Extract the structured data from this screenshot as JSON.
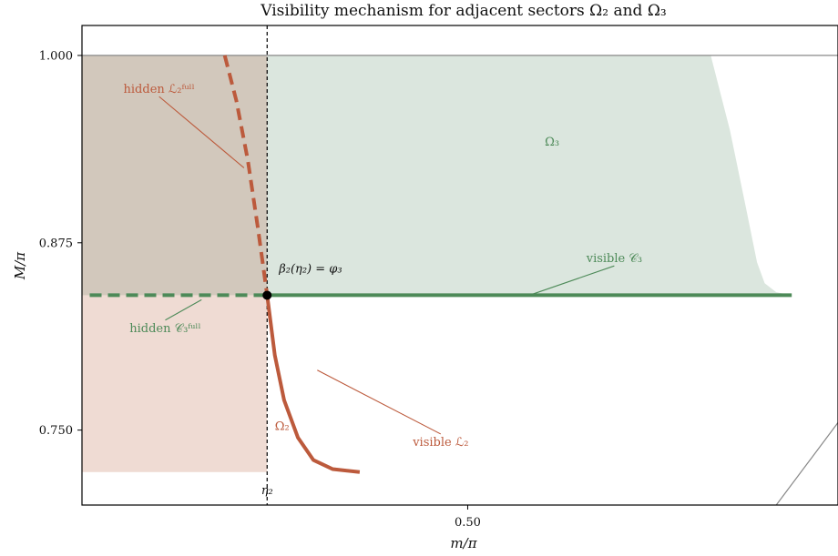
{
  "chart_data": {
    "type": "area",
    "title": "Visibility mechanism for adjacent sectors Ω₂ and Ω₃",
    "xlabel": "m/π",
    "ylabel": "M/π",
    "xlim": [
      0.0,
      0.98
    ],
    "ylim": [
      0.7,
      1.02
    ],
    "xticks": [
      {
        "value": 0.5,
        "label": "0.50"
      }
    ],
    "yticks": [
      {
        "value": 0.75,
        "label": "0.750"
      },
      {
        "value": 0.875,
        "label": "0.875"
      },
      {
        "value": 1.0,
        "label": "1.000"
      }
    ],
    "grid": false,
    "legend": "none",
    "colors": {
      "omega2_fill": "#efdbd3",
      "omega3_fill": "#dbe6de",
      "overlap_fill": "#d2c8bc",
      "L2": "#bc5a3c",
      "C3": "#4d8a58",
      "crossing_point": "#000000",
      "reference_line": "#888888"
    },
    "eta2": {
      "x": 0.24,
      "label": "η₂"
    },
    "phi3": 0.84,
    "omega3_region": {
      "label": "Ω₃",
      "label_x": 0.6,
      "label_y": 0.94,
      "boundary": [
        [
          0.0,
          1.0
        ],
        [
          0.815,
          1.0
        ],
        [
          0.84,
          0.95
        ],
        [
          0.86,
          0.9
        ],
        [
          0.875,
          0.862
        ],
        [
          0.885,
          0.848
        ],
        [
          0.9,
          0.842
        ],
        [
          0.92,
          0.84
        ],
        [
          0.92,
          0.84
        ],
        [
          0.0,
          0.84
        ]
      ]
    },
    "omega2_region": {
      "label": "Ω₂",
      "label_x": 0.25,
      "label_y": 0.75,
      "xmin": 0.0,
      "xmax": 0.24,
      "ymin": 0.722,
      "ymax": 0.84
    },
    "overlap_region": {
      "xmin": 0.0,
      "xmax": 0.24,
      "ymin": 0.84,
      "ymax": 1.0
    },
    "series": [
      {
        "name": "hidden ℒ₂ᶠᵘˡˡ",
        "style": "dashed",
        "points": [
          [
            0.185,
            1.0
          ],
          [
            0.2,
            0.97
          ],
          [
            0.215,
            0.93
          ],
          [
            0.228,
            0.885
          ],
          [
            0.24,
            0.84
          ]
        ]
      },
      {
        "name": "visible ℒ₂",
        "style": "solid",
        "points": [
          [
            0.24,
            0.84
          ],
          [
            0.25,
            0.8
          ],
          [
            0.262,
            0.77
          ],
          [
            0.28,
            0.745
          ],
          [
            0.3,
            0.73
          ],
          [
            0.325,
            0.724
          ],
          [
            0.36,
            0.722
          ]
        ]
      },
      {
        "name": "hidden 𝒞₃ᶠᵘˡˡ",
        "style": "dashed",
        "points": [
          [
            0.01,
            0.84
          ],
          [
            0.24,
            0.84
          ]
        ]
      },
      {
        "name": "visible 𝒞₃",
        "style": "solid",
        "points": [
          [
            0.24,
            0.84
          ],
          [
            0.92,
            0.84
          ]
        ]
      }
    ],
    "reference_lines": [
      {
        "points": [
          [
            0.0,
            1.0
          ],
          [
            0.98,
            1.0
          ]
        ]
      },
      {
        "points": [
          [
            0.9,
            0.7
          ],
          [
            0.98,
            0.755
          ]
        ]
      }
    ],
    "crossing_point": {
      "x": 0.24,
      "y": 0.84,
      "label": "β₂(η₂) = φ₃"
    },
    "annotations": [
      {
        "text": "hidden ℒ₂ᶠᵘˡˡ",
        "text_x": 0.1,
        "text_y": 0.975,
        "arrow_x": 0.21,
        "arrow_y": 0.925,
        "color": "#bc5a3c"
      },
      {
        "text": "visible 𝒞₃",
        "text_x": 0.69,
        "text_y": 0.862,
        "arrow_x": 0.58,
        "arrow_y": 0.84,
        "color": "#4d8a58"
      },
      {
        "text": "hidden 𝒞₃ᶠᵘˡˡ",
        "text_x": 0.108,
        "text_y": 0.8155,
        "arrow_x": 0.155,
        "arrow_y": 0.837,
        "color": "#4d8a58"
      },
      {
        "text": "visible ℒ₂",
        "text_x": 0.465,
        "text_y": 0.7395,
        "arrow_x": 0.305,
        "arrow_y": 0.79,
        "color": "#bc5a3c"
      }
    ]
  }
}
